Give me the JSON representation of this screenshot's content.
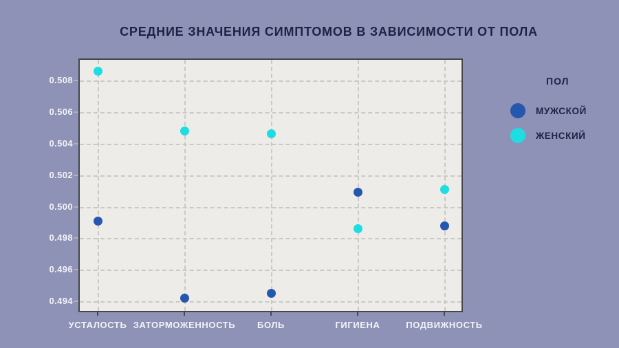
{
  "title": "СРЕДНИЕ ЗНАЧЕНИЯ СИМПТОМОВ В ЗАВИСИМОСТИ ОТ ПОЛА",
  "legend": {
    "title": "ПОЛ",
    "items": [
      {
        "label": "МУЖСКОЙ",
        "color": "#2557ae"
      },
      {
        "label": "ЖЕНСКИЙ",
        "color": "#1edde2"
      }
    ]
  },
  "colors": {
    "background": "#8e92b6",
    "plot_background": "#edeceb",
    "grid": "#cbc9c5",
    "plot_border": "#45454c",
    "axis_text": "#f3f3f8",
    "title_text": "#1d2344",
    "male": "#2557ae",
    "female": "#1edde2"
  },
  "chart_data": {
    "type": "scatter",
    "title": "СРЕДНИЕ ЗНАЧЕНИЯ СИМПТОМОВ В ЗАВИСИМОСТИ ОТ ПОЛА",
    "categories": [
      "УСТАЛОСТЬ",
      "ЗАТОРМОЖЕННОСТЬ",
      "БОЛЬ",
      "ГИГИЕНА",
      "ПОДВИЖНОСТЬ"
    ],
    "series": [
      {
        "name": "МУЖСКОЙ",
        "color": "#2557ae",
        "values": [
          0.4991,
          0.4942,
          0.4945,
          0.5009,
          0.4988
        ]
      },
      {
        "name": "ЖЕНСКИЙ",
        "color": "#1edde2",
        "values": [
          0.5086,
          0.5048,
          0.5046,
          0.4986,
          0.5011
        ]
      }
    ],
    "xlabel": "",
    "ylabel": "",
    "ylim": [
      0.4934,
      0.5093
    ],
    "yticks": [
      0.494,
      0.496,
      0.498,
      0.5,
      0.502,
      0.504,
      0.506,
      0.508
    ],
    "ytick_format_decimals": 3,
    "grid": "dashed-both",
    "legend_title": "ПОЛ",
    "legend_position": "right"
  }
}
